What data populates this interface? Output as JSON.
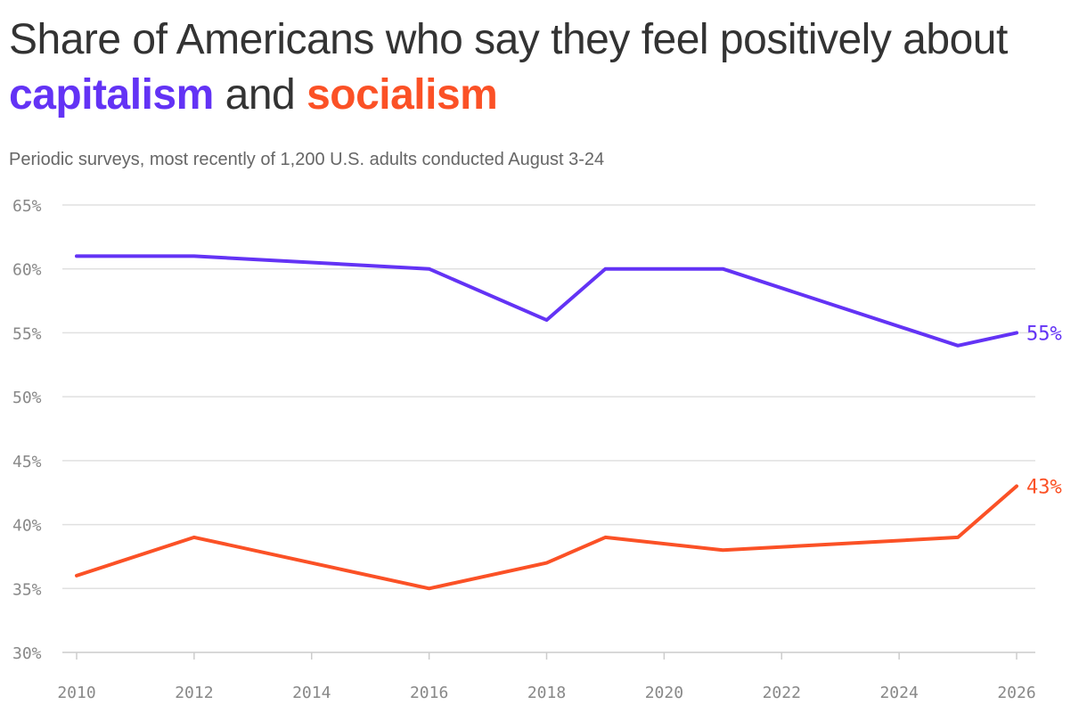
{
  "title": {
    "prefix": "Share of Americans who say they feel positively about",
    "highlight1": "capitalism",
    "joiner": "and",
    "highlight2": "socialism"
  },
  "subtitle": "Periodic surveys, most recently of 1,200 U.S. adults conducted August 3-24",
  "colors": {
    "capitalism": "#6333f5",
    "socialism": "#fb5126",
    "grid": "#e0e0e0",
    "text": "#333333"
  },
  "chart_data": {
    "type": "line",
    "ylim": [
      30,
      65
    ],
    "yticks": [
      30,
      35,
      40,
      45,
      50,
      55,
      60,
      65
    ],
    "ytick_labels": [
      "30%",
      "35%",
      "40%",
      "45%",
      "50%",
      "55%",
      "60%",
      "65%"
    ],
    "xlim": [
      2010,
      2026
    ],
    "xticks": [
      2010,
      2012,
      2014,
      2016,
      2018,
      2020,
      2022,
      2024,
      2026
    ],
    "xtick_labels": [
      "2010",
      "2012",
      "2014",
      "2016",
      "2018",
      "2020",
      "2022",
      "2024",
      "2026"
    ],
    "grid": true,
    "series": [
      {
        "key": "capitalism",
        "x": [
          2010,
          2012,
          2016,
          2018,
          2019,
          2021,
          2025,
          2026
        ],
        "y": [
          61,
          61,
          60,
          56,
          60,
          60,
          54,
          55
        ],
        "end_label": "55%"
      },
      {
        "key": "socialism",
        "x": [
          2010,
          2012,
          2016,
          2018,
          2019,
          2021,
          2025,
          2026
        ],
        "y": [
          36,
          39,
          35,
          37,
          39,
          38,
          39,
          43
        ],
        "end_label": "43%"
      }
    ]
  }
}
